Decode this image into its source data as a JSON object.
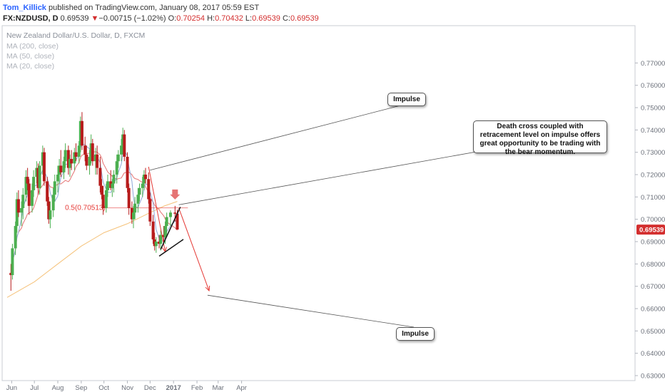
{
  "header": {
    "author": "Tom_Killick",
    "published_text": "published on TradingView.com, January 08, 2017 05:59 EST",
    "symbol": "FX:NZDUSD, D",
    "last": "0.69539",
    "change_arrow": "▼",
    "change": "−0.00715 (−1.02%)",
    "o_label": "O:",
    "o_value": "0.70254",
    "h_label": "H:",
    "h_value": "0.70432",
    "l_label": "L:",
    "l_value": "0.69539",
    "c_label": "C:",
    "c_value": "0.69539"
  },
  "legend": {
    "title": "New Zealand Dollar/U.S. Dollar, D, FXCM",
    "ma200": "MA (200, close)",
    "ma50": "MA (50, close)",
    "ma20": "MA (20, close)"
  },
  "annotations": {
    "impulse_top": "Impulse",
    "impulse_bottom": "Impulse",
    "death_cross": "Death cross coupled with retracement level on impulse offers great opportunity to be trading with the bear momentum.",
    "fib_label": "0.5(0.70513)"
  },
  "colors": {
    "up": "#4caf50",
    "down": "#b71c1c",
    "ma20": "#8fa9d9",
    "ma50": "#e57373",
    "ma200": "#f5c27a",
    "annotation_red": "#e53935",
    "price_tag": "#d32f2f"
  },
  "chart_data": {
    "type": "candlestick",
    "symbol": "FX:NZDUSD",
    "timeframe": "D",
    "ylim": [
      0.63,
      0.78
    ],
    "y_ticks": [
      "0.77000",
      "0.76000",
      "0.75000",
      "0.74000",
      "0.73000",
      "0.72000",
      "0.71000",
      "0.70000",
      "0.69000",
      "0.68000",
      "0.67000",
      "0.66000",
      "0.65000",
      "0.64000",
      "0.63000"
    ],
    "x_ticks": [
      "Jun",
      "Jul",
      "Aug",
      "Sep",
      "Oct",
      "Nov",
      "Dec",
      "2017",
      "Feb",
      "Mar",
      "Apr"
    ],
    "last_price_label": "0.69539",
    "fib_level": 0.70513,
    "ohlc_approx": [
      [
        "2016-05-31",
        0.676,
        0.68,
        0.668,
        0.675
      ],
      [
        "2016-06-02",
        0.675,
        0.689,
        0.673,
        0.687
      ],
      [
        "2016-06-06",
        0.687,
        0.699,
        0.684,
        0.697
      ],
      [
        "2016-06-08",
        0.697,
        0.712,
        0.694,
        0.709
      ],
      [
        "2016-06-10",
        0.709,
        0.713,
        0.701,
        0.703
      ],
      [
        "2016-06-14",
        0.703,
        0.708,
        0.697,
        0.705
      ],
      [
        "2016-06-16",
        0.705,
        0.714,
        0.7,
        0.711
      ],
      [
        "2016-06-20",
        0.711,
        0.722,
        0.708,
        0.719
      ],
      [
        "2016-06-22",
        0.719,
        0.723,
        0.713,
        0.716
      ],
      [
        "2016-06-24",
        0.716,
        0.718,
        0.702,
        0.706
      ],
      [
        "2016-06-28",
        0.706,
        0.716,
        0.703,
        0.713
      ],
      [
        "2016-06-30",
        0.713,
        0.722,
        0.71,
        0.719
      ],
      [
        "2016-07-04",
        0.719,
        0.726,
        0.716,
        0.723
      ],
      [
        "2016-07-06",
        0.723,
        0.725,
        0.711,
        0.714
      ],
      [
        "2016-07-08",
        0.714,
        0.726,
        0.711,
        0.724
      ],
      [
        "2016-07-12",
        0.724,
        0.733,
        0.72,
        0.73
      ],
      [
        "2016-07-14",
        0.73,
        0.732,
        0.715,
        0.717
      ],
      [
        "2016-07-18",
        0.717,
        0.719,
        0.706,
        0.708
      ],
      [
        "2016-07-20",
        0.708,
        0.71,
        0.698,
        0.7
      ],
      [
        "2016-07-22",
        0.7,
        0.708,
        0.696,
        0.704
      ],
      [
        "2016-07-26",
        0.704,
        0.714,
        0.701,
        0.711
      ],
      [
        "2016-07-28",
        0.711,
        0.72,
        0.708,
        0.717
      ],
      [
        "2016-08-01",
        0.717,
        0.724,
        0.712,
        0.72
      ],
      [
        "2016-08-03",
        0.72,
        0.727,
        0.716,
        0.724
      ],
      [
        "2016-08-05",
        0.724,
        0.731,
        0.719,
        0.721
      ],
      [
        "2016-08-09",
        0.721,
        0.728,
        0.718,
        0.726
      ],
      [
        "2016-08-11",
        0.726,
        0.734,
        0.723,
        0.731
      ],
      [
        "2016-08-15",
        0.731,
        0.733,
        0.72,
        0.723
      ],
      [
        "2016-08-17",
        0.723,
        0.729,
        0.719,
        0.727
      ],
      [
        "2016-08-19",
        0.727,
        0.731,
        0.722,
        0.725
      ],
      [
        "2016-08-23",
        0.725,
        0.732,
        0.722,
        0.73
      ],
      [
        "2016-08-25",
        0.73,
        0.734,
        0.726,
        0.728
      ],
      [
        "2016-08-29",
        0.728,
        0.735,
        0.725,
        0.733
      ],
      [
        "2016-08-31",
        0.733,
        0.746,
        0.73,
        0.744
      ],
      [
        "2016-09-02",
        0.744,
        0.748,
        0.731,
        0.733
      ],
      [
        "2016-09-06",
        0.733,
        0.737,
        0.726,
        0.729
      ],
      [
        "2016-09-08",
        0.729,
        0.733,
        0.722,
        0.724
      ],
      [
        "2016-09-12",
        0.724,
        0.731,
        0.72,
        0.728
      ],
      [
        "2016-09-14",
        0.728,
        0.738,
        0.725,
        0.734
      ],
      [
        "2016-09-16",
        0.734,
        0.736,
        0.724,
        0.726
      ],
      [
        "2016-09-20",
        0.726,
        0.732,
        0.72,
        0.729
      ],
      [
        "2016-09-22",
        0.729,
        0.733,
        0.72,
        0.723
      ],
      [
        "2016-09-26",
        0.723,
        0.728,
        0.712,
        0.715
      ],
      [
        "2016-09-28",
        0.715,
        0.718,
        0.709,
        0.711
      ],
      [
        "2016-09-30",
        0.711,
        0.715,
        0.702,
        0.705
      ],
      [
        "2016-10-04",
        0.705,
        0.716,
        0.703,
        0.713
      ],
      [
        "2016-10-06",
        0.713,
        0.72,
        0.71,
        0.717
      ],
      [
        "2016-10-10",
        0.717,
        0.722,
        0.713,
        0.714
      ],
      [
        "2016-10-12",
        0.714,
        0.718,
        0.71,
        0.716
      ],
      [
        "2016-10-14",
        0.716,
        0.722,
        0.712,
        0.72
      ],
      [
        "2016-10-18",
        0.72,
        0.729,
        0.716,
        0.726
      ],
      [
        "2016-10-20",
        0.726,
        0.731,
        0.723,
        0.729
      ],
      [
        "2016-10-24",
        0.729,
        0.736,
        0.726,
        0.733
      ],
      [
        "2016-10-26",
        0.733,
        0.741,
        0.729,
        0.738
      ],
      [
        "2016-10-28",
        0.738,
        0.74,
        0.726,
        0.728
      ],
      [
        "2016-11-01",
        0.728,
        0.73,
        0.712,
        0.714
      ],
      [
        "2016-11-03",
        0.714,
        0.716,
        0.702,
        0.705
      ],
      [
        "2016-11-07",
        0.705,
        0.708,
        0.698,
        0.7
      ],
      [
        "2016-11-09",
        0.7,
        0.706,
        0.696,
        0.703
      ],
      [
        "2016-11-11",
        0.703,
        0.71,
        0.7,
        0.707
      ],
      [
        "2016-11-15",
        0.707,
        0.714,
        0.703,
        0.711
      ],
      [
        "2016-11-17",
        0.711,
        0.716,
        0.708,
        0.714
      ],
      [
        "2016-11-21",
        0.714,
        0.719,
        0.71,
        0.716
      ],
      [
        "2016-11-23",
        0.716,
        0.722,
        0.713,
        0.72
      ],
      [
        "2016-11-25",
        0.72,
        0.723,
        0.716,
        0.718
      ],
      [
        "2016-11-29",
        0.718,
        0.721,
        0.707,
        0.709
      ],
      [
        "2016-12-01",
        0.709,
        0.712,
        0.697,
        0.699
      ],
      [
        "2016-12-05",
        0.699,
        0.702,
        0.689,
        0.691
      ],
      [
        "2016-12-07",
        0.691,
        0.694,
        0.686,
        0.688
      ],
      [
        "2016-12-09",
        0.688,
        0.692,
        0.685,
        0.69
      ],
      [
        "2016-12-13",
        0.69,
        0.693,
        0.687,
        0.689
      ],
      [
        "2016-12-15",
        0.689,
        0.695,
        0.686,
        0.693
      ],
      [
        "2016-12-19",
        0.693,
        0.697,
        0.69,
        0.692
      ],
      [
        "2016-12-21",
        0.692,
        0.699,
        0.689,
        0.697
      ],
      [
        "2016-12-23",
        0.697,
        0.703,
        0.693,
        0.701
      ],
      [
        "2016-12-28",
        0.701,
        0.704,
        0.697,
        0.703
      ],
      [
        "2017-01-03",
        0.703,
        0.706,
        0.699,
        0.7025
      ],
      [
        "2017-01-06",
        0.70254,
        0.70432,
        0.69539,
        0.69539
      ]
    ],
    "series": [
      {
        "name": "MA (200, close)"
      },
      {
        "name": "MA (50, close)"
      },
      {
        "name": "MA (20, close)"
      }
    ]
  }
}
